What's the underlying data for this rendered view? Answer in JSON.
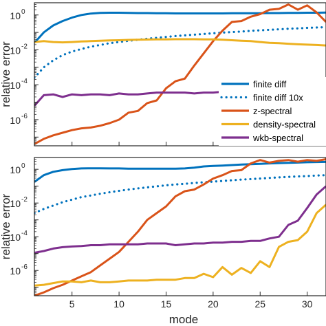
{
  "chart_data": [
    {
      "type": "line",
      "ylabel": "relative error",
      "xlim": [
        1,
        32
      ],
      "ylim_log10": [
        -7.5,
        0.7
      ],
      "y_scale": "log",
      "y_ticks": [
        {
          "exp": 0,
          "base": "10",
          "power": "0"
        },
        {
          "exp": -2,
          "base": "10",
          "power": "-2"
        },
        {
          "exp": -4,
          "base": "10",
          "power": "-4"
        },
        {
          "exp": -6,
          "base": "10",
          "power": "-6"
        }
      ],
      "legend": {
        "placement": "bottom-right",
        "entries": [
          "finite diff",
          "finite diff 10x",
          "z-spectral",
          "density-spectral",
          "wkb-spectral"
        ]
      },
      "series": [
        {
          "name": "finite diff",
          "color": "#0072BD",
          "dash": "solid",
          "x": [
            1,
            2,
            3,
            4,
            5,
            6,
            7,
            8,
            9,
            10,
            11,
            12,
            13,
            14,
            15,
            16,
            17,
            18,
            19,
            20,
            21,
            22,
            23,
            24,
            25,
            26,
            27,
            28,
            29,
            30,
            31,
            32
          ],
          "log10_y": [
            -1.6,
            -1.0,
            -0.6,
            -0.35,
            -0.15,
            0.0,
            0.08,
            0.12,
            0.13,
            0.13,
            0.12,
            0.11,
            0.11,
            0.1,
            0.1,
            0.09,
            0.09,
            0.09,
            0.09,
            0.09,
            0.09,
            0.1,
            0.1,
            0.1,
            0.1,
            0.11,
            0.11,
            0.12,
            0.12,
            0.13,
            0.13,
            0.14
          ]
        },
        {
          "name": "finite diff 10x",
          "color": "#0072BD",
          "dash": "dotted",
          "x": [
            1,
            2,
            3,
            4,
            5,
            6,
            7,
            8,
            9,
            10,
            11,
            12,
            13,
            14,
            15,
            16,
            17,
            18,
            19,
            20,
            21,
            22,
            23,
            24,
            25,
            26,
            27,
            28,
            29,
            30,
            31,
            32
          ],
          "log10_y": [
            -3.6,
            -3.0,
            -2.6,
            -2.3,
            -2.1,
            -1.95,
            -1.82,
            -1.72,
            -1.62,
            -1.55,
            -1.48,
            -1.42,
            -1.36,
            -1.31,
            -1.26,
            -1.21,
            -1.17,
            -1.13,
            -1.09,
            -1.05,
            -1.01,
            -0.98,
            -0.95,
            -0.91,
            -0.88,
            -0.85,
            -0.82,
            -0.79,
            -0.77,
            -0.74,
            -0.72,
            -0.7
          ]
        },
        {
          "name": "z-spectral",
          "color": "#D95319",
          "dash": "solid",
          "x": [
            1,
            2,
            3,
            4,
            5,
            6,
            7,
            8,
            9,
            10,
            11,
            12,
            13,
            14,
            15,
            16,
            17,
            18,
            19,
            20,
            21,
            22,
            23,
            24,
            25,
            26,
            27,
            28,
            29,
            30,
            31,
            32
          ],
          "log10_y": [
            -7.4,
            -7.1,
            -6.9,
            -6.75,
            -6.6,
            -6.5,
            -6.45,
            -6.35,
            -6.2,
            -6.0,
            -5.6,
            -5.5,
            -5.05,
            -4.9,
            -4.2,
            -3.8,
            -3.65,
            -2.9,
            -2.2,
            -1.5,
            -0.9,
            -0.4,
            -0.35,
            -0.1,
            0.05,
            0.3,
            0.35,
            0.6,
            0.3,
            0.55,
            0.15,
            -0.4
          ]
        },
        {
          "name": "density-spectral",
          "color": "#EDB120",
          "dash": "solid",
          "x": [
            1,
            2,
            3,
            4,
            5,
            6,
            7,
            8,
            9,
            10,
            11,
            12,
            13,
            14,
            15,
            16,
            17,
            18,
            19,
            20,
            21,
            22,
            23,
            24,
            25,
            26,
            27,
            28,
            29,
            30,
            31,
            32
          ],
          "log10_y": [
            -1.55,
            -1.5,
            -1.55,
            -1.57,
            -1.55,
            -1.52,
            -1.5,
            -1.48,
            -1.46,
            -1.45,
            -1.43,
            -1.42,
            -1.41,
            -1.4,
            -1.4,
            -1.39,
            -1.39,
            -1.39,
            -1.4,
            -1.4,
            -1.42,
            -1.45,
            -1.48,
            -1.5,
            -1.55,
            -1.6,
            -1.62,
            -1.65,
            -1.68,
            -1.7,
            -1.72,
            -1.75
          ]
        },
        {
          "name": "wkb-spectral",
          "color": "#7E2F8E",
          "dash": "solid",
          "x": [
            1,
            2,
            3,
            4,
            5,
            6,
            7,
            8,
            9,
            10,
            11,
            12,
            13,
            14,
            15,
            16,
            17,
            18,
            19,
            20,
            21,
            22,
            23,
            24,
            25,
            26,
            27,
            28,
            29,
            30,
            31,
            32
          ],
          "log10_y": [
            -5.2,
            -4.6,
            -4.55,
            -4.7,
            -4.55,
            -4.6,
            -4.55,
            -4.55,
            -4.6,
            -4.5,
            -4.55,
            -4.55,
            -4.5,
            -4.45,
            -4.45,
            -4.45,
            -4.45,
            -4.5,
            -4.45,
            -4.45,
            -4.4,
            -4.4,
            -4.4,
            -4.35,
            -4.3,
            -4.3,
            -4.3,
            -4.3,
            -4.25,
            -4.2,
            -4.1,
            -3.7
          ]
        }
      ]
    },
    {
      "type": "line",
      "ylabel": "relative error",
      "xlabel": "mode",
      "xlim": [
        1,
        32
      ],
      "ylim_log10": [
        -7.5,
        0.7
      ],
      "y_scale": "log",
      "x_ticks": [
        "5",
        "10",
        "15",
        "20",
        "25",
        "30"
      ],
      "x_tick_values": [
        5,
        10,
        15,
        20,
        25,
        30
      ],
      "y_ticks": [
        {
          "exp": 0,
          "base": "10",
          "power": "0"
        },
        {
          "exp": -2,
          "base": "10",
          "power": "-2"
        },
        {
          "exp": -4,
          "base": "10",
          "power": "-4"
        },
        {
          "exp": -6,
          "base": "10",
          "power": "-6"
        }
      ],
      "series": [
        {
          "name": "finite diff",
          "color": "#0072BD",
          "dash": "solid",
          "x": [
            1,
            2,
            3,
            4,
            5,
            6,
            7,
            8,
            9,
            10,
            11,
            12,
            13,
            14,
            15,
            16,
            17,
            18,
            19,
            20,
            21,
            22,
            23,
            24,
            25,
            26,
            27,
            28,
            29,
            30,
            31,
            32
          ],
          "log10_y": [
            -0.75,
            -0.35,
            -0.15,
            -0.05,
            0.02,
            0.05,
            0.06,
            0.06,
            0.05,
            0.05,
            0.04,
            0.04,
            0.04,
            0.04,
            0.04,
            0.04,
            0.05,
            0.1,
            0.17,
            0.2,
            0.22,
            0.25,
            0.28,
            0.3,
            0.32,
            0.35,
            0.37,
            0.38,
            0.4,
            0.42,
            0.43,
            0.44
          ]
        },
        {
          "name": "finite diff 10x",
          "color": "#0072BD",
          "dash": "dotted",
          "x": [
            1,
            2,
            3,
            4,
            5,
            6,
            7,
            8,
            9,
            10,
            11,
            12,
            13,
            14,
            15,
            16,
            17,
            18,
            19,
            20,
            21,
            22,
            23,
            24,
            25,
            26,
            27,
            28,
            29,
            30,
            31,
            32
          ],
          "log10_y": [
            -2.6,
            -2.35,
            -2.15,
            -1.95,
            -1.8,
            -1.65,
            -1.55,
            -1.45,
            -1.36,
            -1.28,
            -1.2,
            -1.13,
            -1.07,
            -1.01,
            -0.95,
            -0.9,
            -0.86,
            -0.81,
            -0.77,
            -0.73,
            -0.69,
            -0.65,
            -0.61,
            -0.58,
            -0.55,
            -0.51,
            -0.48,
            -0.45,
            -0.42,
            -0.4,
            -0.37,
            -0.35
          ]
        },
        {
          "name": "z-spectral",
          "color": "#D95319",
          "dash": "solid",
          "x": [
            1,
            2,
            3,
            4,
            5,
            6,
            7,
            8,
            9,
            10,
            11,
            12,
            13,
            14,
            15,
            16,
            17,
            18,
            19,
            20,
            21,
            22,
            23,
            24,
            25,
            26,
            27,
            28,
            29,
            30,
            31,
            32
          ],
          "log10_y": [
            -7.5,
            -7.3,
            -7.05,
            -6.85,
            -6.6,
            -6.35,
            -6.1,
            -5.7,
            -5.3,
            -4.9,
            -4.3,
            -3.7,
            -3.0,
            -2.6,
            -2.2,
            -1.6,
            -1.3,
            -1.2,
            -0.9,
            -0.55,
            -0.35,
            -0.1,
            -0.05,
            0.35,
            0.55,
            0.4,
            0.5,
            0.55,
            0.45,
            0.55,
            0.5,
            0.6
          ]
        },
        {
          "name": "density-spectral",
          "color": "#EDB120",
          "dash": "solid",
          "x": [
            1,
            2,
            3,
            4,
            5,
            6,
            7,
            8,
            9,
            10,
            11,
            12,
            13,
            14,
            15,
            16,
            17,
            18,
            19,
            20,
            21,
            22,
            23,
            24,
            25,
            26,
            27,
            28,
            29,
            30,
            31,
            32
          ],
          "log10_y": [
            -6.9,
            -6.85,
            -6.75,
            -6.65,
            -6.65,
            -6.7,
            -6.6,
            -6.7,
            -6.7,
            -6.65,
            -6.6,
            -6.6,
            -6.6,
            -6.55,
            -6.55,
            -6.55,
            -6.45,
            -6.45,
            -6.2,
            -6.4,
            -5.8,
            -6.25,
            -5.85,
            -6.15,
            -5.45,
            -5.8,
            -4.6,
            -4.3,
            -4.2,
            -3.7,
            -2.6,
            -2.1
          ]
        },
        {
          "name": "wkb-spectral",
          "color": "#7E2F8E",
          "dash": "solid",
          "x": [
            1,
            2,
            3,
            4,
            5,
            6,
            7,
            8,
            9,
            10,
            11,
            12,
            13,
            14,
            15,
            16,
            17,
            18,
            19,
            20,
            21,
            22,
            23,
            24,
            25,
            26,
            27,
            28,
            29,
            30,
            31,
            32
          ],
          "log10_y": [
            -4.95,
            -4.85,
            -4.7,
            -4.62,
            -4.58,
            -4.55,
            -4.5,
            -4.5,
            -4.45,
            -4.45,
            -4.45,
            -4.45,
            -4.4,
            -4.4,
            -4.4,
            -4.5,
            -4.45,
            -4.4,
            -4.4,
            -4.35,
            -4.35,
            -4.3,
            -4.3,
            -4.25,
            -4.25,
            -4.1,
            -4.0,
            -3.3,
            -3.05,
            -2.3,
            -1.5,
            -1.0
          ]
        }
      ]
    }
  ]
}
